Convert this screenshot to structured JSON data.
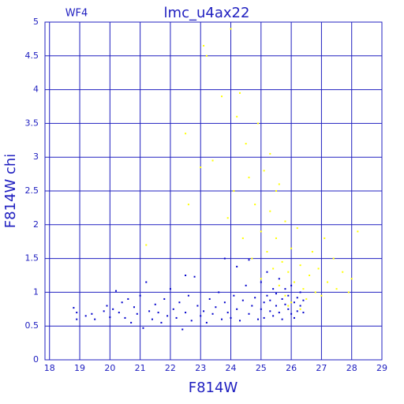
{
  "chart_data": {
    "type": "scatter",
    "title": "lmc_u4ax22",
    "subtitle": "WF4",
    "x_label": "F814W",
    "y_label": "F814W chi",
    "xlim": [
      17.85,
      29
    ],
    "ylim": [
      0,
      5
    ],
    "xticks": [
      18,
      19,
      20,
      21,
      22,
      23,
      24,
      25,
      26,
      27,
      28,
      29
    ],
    "yticks": [
      0,
      0.5,
      1,
      1.5,
      2,
      2.5,
      3,
      3.5,
      4,
      4.5,
      5
    ],
    "grid": true,
    "series": [
      {
        "color": "#0000cc",
        "x": [
          18.8,
          18.9,
          18.9,
          19.2,
          19.4,
          19.5,
          19.8,
          19.9,
          20.0,
          20.1,
          20.2,
          20.3,
          20.4,
          20.5,
          20.6,
          20.7,
          20.8,
          20.9,
          21.0,
          21.1,
          21.2,
          21.3,
          21.4,
          21.5,
          21.6,
          21.7,
          21.8,
          21.9,
          22.0,
          22.1,
          22.2,
          22.3,
          22.4,
          22.5,
          22.6,
          22.7,
          22.8,
          22.9,
          23.0,
          23.1,
          23.2,
          23.3,
          23.4,
          23.5,
          23.6,
          23.7,
          23.8,
          23.9,
          24.0,
          24.1,
          24.2,
          24.3,
          24.4,
          24.5,
          24.6,
          24.7,
          24.8,
          24.9,
          25.0,
          25.0,
          25.1,
          25.1,
          25.2,
          25.2,
          25.3,
          25.3,
          25.4,
          25.4,
          25.5,
          25.5,
          25.6,
          25.6,
          25.7,
          25.7,
          25.8,
          25.8,
          25.9,
          25.9,
          26.0,
          26.0,
          26.1,
          26.1,
          26.2,
          26.2,
          26.3,
          26.3,
          26.4,
          26.4,
          24.2,
          23.8,
          24.6,
          22.5
        ],
        "y": [
          0.77,
          0.6,
          0.7,
          0.65,
          0.68,
          0.6,
          0.72,
          0.8,
          0.63,
          0.75,
          1.02,
          0.7,
          0.85,
          0.62,
          0.9,
          0.55,
          0.78,
          0.68,
          0.95,
          0.47,
          1.15,
          0.72,
          0.6,
          0.82,
          0.7,
          0.55,
          0.9,
          0.65,
          1.05,
          0.75,
          0.62,
          0.85,
          0.45,
          0.7,
          0.95,
          0.58,
          1.23,
          0.8,
          0.65,
          0.72,
          0.55,
          0.9,
          0.68,
          0.78,
          1.0,
          0.6,
          0.85,
          0.7,
          0.62,
          0.95,
          0.75,
          0.58,
          0.88,
          1.1,
          0.68,
          0.8,
          0.92,
          0.6,
          1.15,
          0.75,
          0.85,
          0.62,
          1.3,
          0.95,
          0.72,
          0.88,
          1.05,
          0.65,
          0.8,
          0.98,
          0.7,
          1.2,
          0.9,
          0.6,
          0.82,
          1.05,
          0.75,
          0.95,
          0.68,
          1.1,
          0.85,
          0.62,
          0.92,
          0.72,
          0.8,
          1.0,
          0.7,
          0.88,
          1.38,
          1.5,
          1.48,
          1.25
        ]
      },
      {
        "color": "#ffff00",
        "x": [
          21.2,
          22.5,
          22.6,
          23.0,
          23.1,
          23.2,
          23.4,
          23.7,
          23.9,
          24.0,
          24.1,
          24.2,
          24.3,
          24.4,
          24.5,
          24.6,
          24.7,
          24.8,
          24.9,
          25.0,
          25.0,
          25.1,
          25.2,
          25.3,
          25.4,
          25.5,
          25.5,
          25.6,
          25.7,
          25.8,
          25.8,
          25.9,
          26.0,
          26.0,
          26.1,
          26.2,
          26.3,
          26.4,
          26.5,
          26.6,
          26.7,
          26.8,
          26.9,
          27.0,
          27.1,
          27.2,
          27.4,
          27.5,
          27.7,
          27.9,
          28.0,
          28.2,
          26.3,
          25.9,
          25.6,
          25.3
        ],
        "y": [
          1.7,
          3.35,
          2.3,
          2.85,
          4.65,
          4.5,
          2.95,
          3.9,
          2.1,
          4.9,
          2.5,
          3.6,
          3.95,
          1.8,
          3.2,
          2.7,
          1.5,
          2.3,
          3.5,
          1.9,
          1.2,
          2.8,
          1.6,
          2.2,
          1.35,
          1.8,
          2.5,
          1.1,
          1.45,
          2.05,
          0.95,
          1.3,
          1.65,
          0.85,
          1.15,
          1.95,
          1.4,
          1.05,
          0.9,
          1.25,
          1.6,
          1.0,
          1.35,
          0.95,
          1.8,
          1.15,
          1.5,
          1.05,
          1.3,
          1.0,
          1.2,
          1.9,
          0.75,
          0.8,
          2.6,
          3.05
        ]
      }
    ]
  }
}
